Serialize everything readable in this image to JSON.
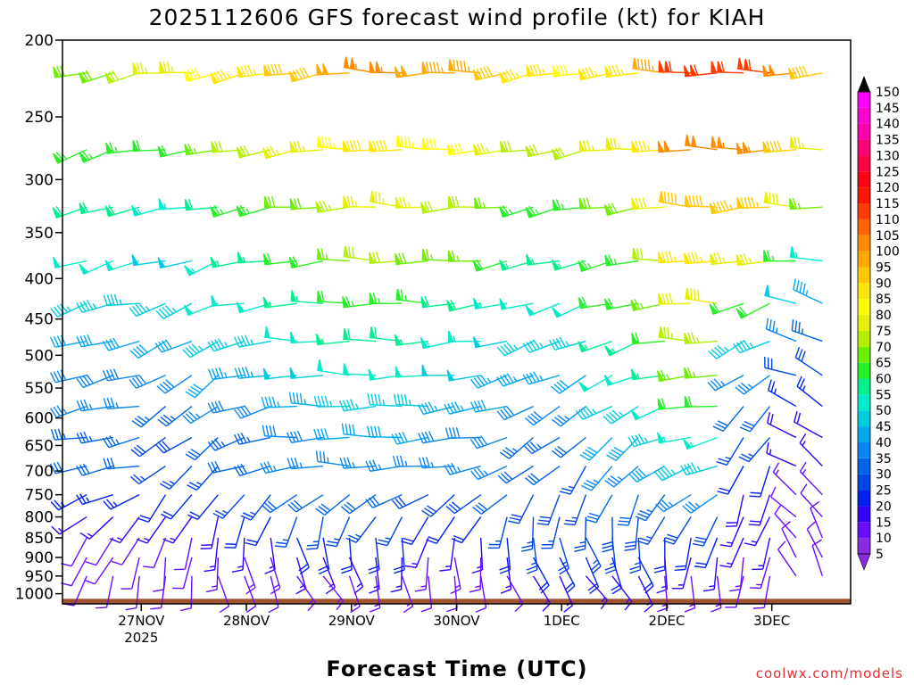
{
  "chart_data": {
    "type": "wind-barb time-height",
    "title": "2025112606 GFS forecast wind profile (kt) for KIAH",
    "xlabel": "Forecast Time (UTC)",
    "credit": "coolwx.com/models",
    "y_axis": {
      "unit": "hPa",
      "range": [
        1030,
        200
      ],
      "ticks": [
        200,
        250,
        300,
        350,
        400,
        450,
        500,
        550,
        600,
        650,
        700,
        750,
        800,
        850,
        900,
        950,
        1000
      ]
    },
    "x_axis": {
      "unit": "days since 26NOV 00Z",
      "range": [
        0.25,
        7.75
      ],
      "ticks": [
        {
          "value": 1,
          "label": "27NOV",
          "sublabel": "2025"
        },
        {
          "value": 2,
          "label": "28NOV"
        },
        {
          "value": 3,
          "label": "29NOV"
        },
        {
          "value": 4,
          "label": "30NOV"
        },
        {
          "value": 5,
          "label": "1DEC"
        },
        {
          "value": 6,
          "label": "2DEC"
        },
        {
          "value": 7,
          "label": "3DEC"
        }
      ]
    },
    "colorbar": {
      "unit": "kt",
      "levels": [
        5,
        10,
        15,
        20,
        25,
        30,
        35,
        40,
        45,
        50,
        55,
        60,
        65,
        70,
        75,
        80,
        85,
        90,
        95,
        100,
        105,
        110,
        115,
        120,
        125,
        130,
        135,
        140,
        145,
        150
      ],
      "colors": [
        "#8a2be2",
        "#6a0dff",
        "#3300ff",
        "#0022ee",
        "#0046e6",
        "#0064e8",
        "#0a86f0",
        "#00a8f0",
        "#00cce0",
        "#00ecc8",
        "#00f08c",
        "#28f028",
        "#6ef000",
        "#b4f000",
        "#e6f000",
        "#ffff00",
        "#ffe600",
        "#ffc800",
        "#ffaa00",
        "#ff8c00",
        "#ff6400",
        "#ff3c00",
        "#ff1400",
        "#ff0014",
        "#ff0046",
        "#ff0078",
        "#ff00aa",
        "#ff00d2",
        "#ff00ff",
        "#ff28ff"
      ]
    },
    "series": [
      {
        "name": "200 hPa wind",
        "pressure": 200,
        "direction_deg": [
          250,
          255,
          260,
          265,
          260,
          255,
          262,
          268,
          272,
          270,
          268,
          262,
          258,
          260,
          265,
          270,
          272,
          270,
          268,
          266
        ],
        "speed_kt": [
          70,
          72,
          75,
          80,
          85,
          90,
          95,
          105,
          110,
          105,
          100,
          95,
          90,
          85,
          90,
          100,
          115,
          115,
          105,
          95
        ]
      },
      {
        "name": "300 hPa wind",
        "pressure": 300,
        "direction_deg": [
          245,
          250,
          255,
          265,
          262,
          258,
          262,
          268,
          272,
          270,
          268,
          262,
          258,
          260,
          265,
          270,
          272,
          270,
          268,
          266
        ],
        "speed_kt": [
          60,
          60,
          60,
          55,
          60,
          65,
          70,
          75,
          80,
          78,
          75,
          70,
          65,
          65,
          70,
          80,
          95,
          100,
          85,
          70
        ]
      },
      {
        "name": "500 hPa wind",
        "pressure": 500,
        "direction_deg": [
          250,
          255,
          260,
          240,
          235,
          260,
          270,
          272,
          270,
          268,
          262,
          255,
          250,
          245,
          250,
          262,
          270,
          240,
          290,
          300
        ],
        "speed_kt": [
          40,
          40,
          40,
          40,
          45,
          45,
          50,
          55,
          55,
          55,
          50,
          45,
          45,
          45,
          55,
          60,
          70,
          40,
          30,
          30
        ]
      },
      {
        "name": "700 hPa wind",
        "pressure": 700,
        "direction_deg": [
          255,
          260,
          260,
          230,
          225,
          250,
          265,
          270,
          268,
          265,
          260,
          250,
          230,
          215,
          220,
          240,
          250,
          200,
          300,
          310
        ],
        "speed_kt": [
          30,
          30,
          30,
          25,
          25,
          30,
          35,
          35,
          35,
          35,
          35,
          35,
          30,
          25,
          35,
          40,
          45,
          20,
          15,
          15
        ]
      },
      {
        "name": "850 hPa wind",
        "pressure": 850,
        "direction_deg": [
          220,
          215,
          205,
          200,
          185,
          175,
          165,
          170,
          180,
          195,
          185,
          175,
          165,
          160,
          170,
          185,
          195,
          200,
          320,
          330
        ],
        "speed_kt": [
          10,
          10,
          10,
          10,
          15,
          15,
          20,
          20,
          20,
          15,
          15,
          20,
          25,
          25,
          25,
          20,
          20,
          15,
          10,
          10
        ]
      },
      {
        "name": "1000 hPa wind",
        "pressure": 1000,
        "direction_deg": [
          200,
          190,
          180,
          170,
          160,
          150,
          140,
          150,
          160,
          170,
          160,
          150,
          140,
          130,
          140,
          160,
          170,
          180,
          340,
          350
        ],
        "speed_kt": [
          10,
          10,
          10,
          10,
          10,
          10,
          10,
          10,
          10,
          10,
          10,
          10,
          10,
          10,
          10,
          10,
          10,
          10,
          10,
          10
        ]
      }
    ]
  }
}
